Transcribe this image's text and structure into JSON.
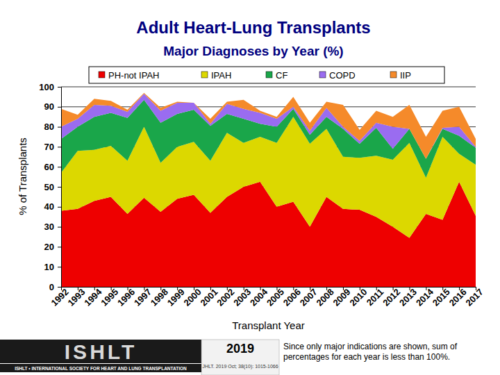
{
  "chart_data": {
    "type": "area",
    "stacked": true,
    "title": "Adult Heart-Lung Transplants",
    "subtitle": "Major Diagnoses by Year (%)",
    "x_label": "Transplant Year",
    "y_label": "% of Transplants",
    "categories": [
      "1992",
      "1993",
      "1994",
      "1995",
      "1996",
      "1997",
      "1998",
      "1999",
      "2000",
      "2001",
      "2002",
      "2003",
      "2004",
      "2005",
      "2006",
      "2007",
      "2008",
      "2009",
      "2010",
      "2011",
      "2012",
      "2013",
      "2014",
      "2015",
      "2016",
      "2017"
    ],
    "series": [
      {
        "name": "PH-not IPAH",
        "color": "#ee0000",
        "values": [
          38,
          39,
          43,
          45,
          36.5,
          44.5,
          37.5,
          44,
          46,
          37,
          45,
          50,
          52.5,
          40,
          42.5,
          30,
          45,
          39,
          38.5,
          35,
          30,
          24.5,
          36.5,
          33.5,
          52.5,
          35.5
        ]
      },
      {
        "name": "IPAH",
        "color": "#dcd800",
        "values": [
          19,
          29,
          25.5,
          25.5,
          26.5,
          35.5,
          24.5,
          26,
          26.5,
          26,
          32,
          22,
          22.5,
          32,
          42.5,
          41.5,
          34,
          26,
          26,
          30.5,
          33.5,
          47.5,
          18,
          41.5,
          14,
          25.5
        ]
      },
      {
        "name": "CF",
        "color": "#1aa64a",
        "values": [
          17,
          12,
          16.5,
          16.5,
          21.5,
          13.5,
          20,
          16.5,
          16,
          17.5,
          9.5,
          12,
          6.5,
          8,
          4,
          4.5,
          6,
          14,
          7,
          14,
          5.5,
          7,
          9.5,
          4,
          9,
          8.5
        ]
      },
      {
        "name": "COPD",
        "color": "#9a6cf0",
        "values": [
          6,
          4,
          6,
          3.5,
          3,
          3,
          6,
          5.5,
          3.5,
          1,
          5,
          5,
          5.5,
          4,
          1,
          2,
          4.5,
          1,
          1.5,
          2.5,
          11,
          0,
          0,
          0.5,
          4.5,
          0.5
        ]
      },
      {
        "name": "IIP",
        "color": "#f58a2a",
        "values": [
          9,
          2,
          3,
          2.5,
          1,
          0.5,
          1.5,
          0.5,
          0,
          2.5,
          1,
          4.5,
          1,
          1,
          5,
          4,
          3,
          11,
          5.5,
          6,
          5,
          12,
          11,
          8.5,
          10,
          4
        ]
      }
    ],
    "ylim": [
      0,
      100
    ],
    "yticks": [
      0,
      10,
      20,
      30,
      40,
      50,
      60,
      70,
      80,
      90,
      100
    ],
    "grid": true,
    "legend": "top",
    "annotations": [
      "ISHLT",
      "ISHLT • INTERNATIONAL SOCIETY FOR HEART AND LUNG TRANSPLANTATION",
      "2019",
      "JHLT. 2019 Oct; 38(10): 1015-1066",
      "Since only major indications are shown, sum of percentages for each year is less than 100%."
    ]
  }
}
